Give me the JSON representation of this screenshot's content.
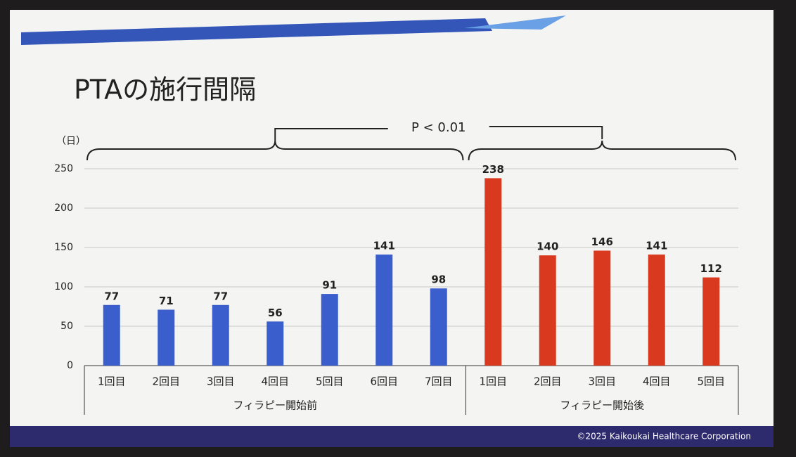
{
  "chart_data": {
    "type": "bar",
    "title": "PTAの施行間隔",
    "y_label": "（日）",
    "annotation": "P < 0.01",
    "ylim": [
      0,
      250
    ],
    "yticks": [
      0,
      50,
      100,
      150,
      200,
      250
    ],
    "grid": true,
    "groups": [
      {
        "name": "フィラピー開始前",
        "color": "#3a5fcd",
        "categories": [
          "1回目",
          "2回目",
          "3回目",
          "4回目",
          "5回目",
          "6回目",
          "7回目"
        ],
        "values": [
          77,
          71,
          77,
          56,
          91,
          141,
          98
        ]
      },
      {
        "name": "フィラピー開始後",
        "color": "#d8391f",
        "categories": [
          "1回目",
          "2回目",
          "3回目",
          "4回目",
          "5回目"
        ],
        "values": [
          238,
          140,
          146,
          141,
          112
        ]
      }
    ]
  },
  "footer": "©2025 Kaikoukai Healthcare Corporation"
}
